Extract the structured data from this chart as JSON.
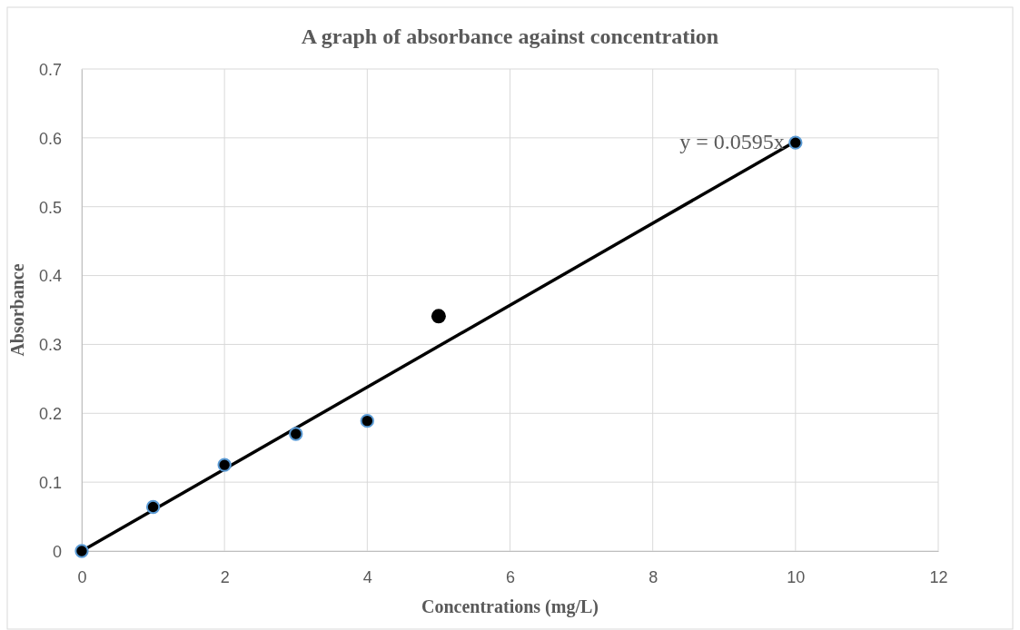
{
  "chart_data": {
    "type": "scatter",
    "title": "A graph of absorbance against concentration",
    "xlabel": "Concentrations (mg/L)",
    "ylabel": "Absorbance",
    "xlim": [
      0,
      12
    ],
    "xticks": [
      0,
      2,
      4,
      6,
      8,
      10,
      12
    ],
    "ylim": [
      0,
      0.7
    ],
    "yticks": [
      0,
      0.1,
      0.2,
      0.3,
      0.4,
      0.5,
      0.6,
      0.7
    ],
    "grid": true,
    "marker": "circle",
    "series": [
      {
        "type": "line",
        "color": "#000000",
        "x": [
          0,
          10
        ],
        "values": [
          0,
          0.595
        ],
        "marker": "none",
        "line_style": "solid"
      },
      {
        "type": "scatter",
        "color": "#000000",
        "x": [
          0,
          1,
          2,
          3,
          4,
          10
        ],
        "values": [
          0,
          0.064,
          0.125,
          0.17,
          0.189,
          0.593
        ]
      },
      {
        "type": "scatter",
        "color": "#000000",
        "x": [
          5
        ],
        "values": [
          0.341
        ]
      }
    ],
    "annotations": [
      {
        "text": "y = 0.0595x",
        "x": 10,
        "y": 0.595
      }
    ]
  }
}
